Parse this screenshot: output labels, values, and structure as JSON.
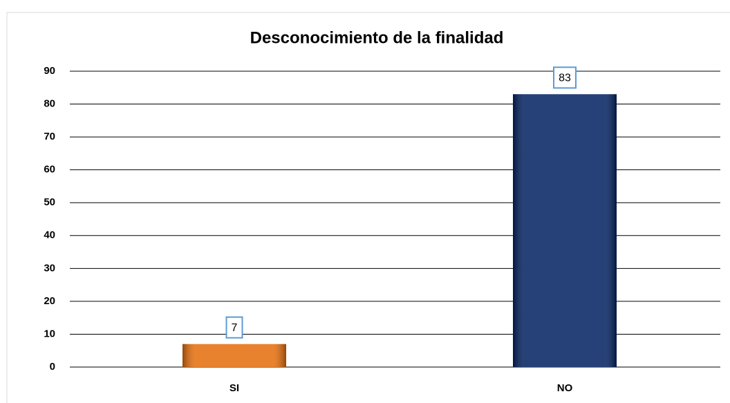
{
  "chart_data": {
    "type": "bar",
    "title": "Desconocimiento de la finalidad",
    "categories": [
      "SI",
      "NO"
    ],
    "values": [
      7,
      83
    ],
    "colors": [
      "#e46c0a",
      "#002060"
    ],
    "ylim": [
      0,
      90
    ],
    "yticks": [
      0,
      10,
      20,
      30,
      40,
      50,
      60,
      70,
      80,
      90
    ],
    "grid": true
  }
}
